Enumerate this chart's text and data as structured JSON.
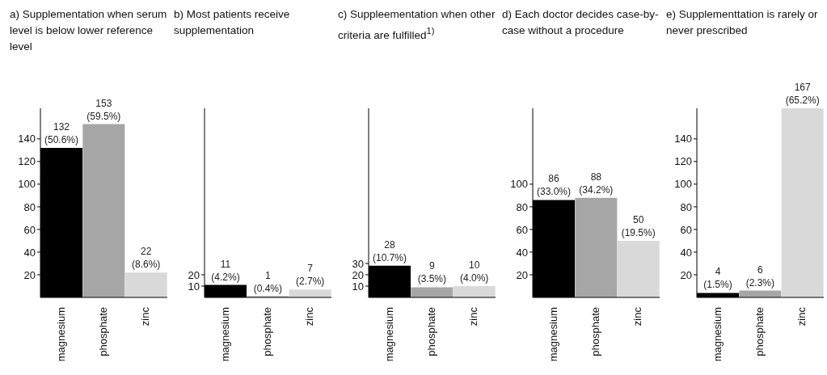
{
  "chart_data": [
    {
      "type": "bar",
      "title": "a) Supplementation when serum level is below lower reference level",
      "categories": [
        "magnesium",
        "phosphate",
        "zinc"
      ],
      "values": [
        132,
        153,
        22
      ],
      "colors": [
        "#000000",
        "#a6a6a6",
        "#d9d9d9"
      ],
      "value_labels": [
        "132 (50.6%)",
        "153 (59.5%)",
        "22 (8.6%)"
      ],
      "ylim": [
        0,
        167
      ],
      "yticks": [
        20,
        40,
        60,
        80,
        100,
        120,
        140
      ],
      "grid": false,
      "legend": false
    },
    {
      "type": "bar",
      "title": "b) Most patients receive supplementation",
      "categories": [
        "magnesium",
        "phosphate",
        "zinc"
      ],
      "values": [
        11,
        1,
        7
      ],
      "colors": [
        "#000000",
        "#a6a6a6",
        "#d9d9d9"
      ],
      "value_labels": [
        "11 (4.2%)",
        "1 (0.4%)",
        "7 (2.7%)"
      ],
      "ylim": [
        0,
        167
      ],
      "yticks": [
        10,
        20
      ],
      "grid": false,
      "legend": false
    },
    {
      "type": "bar",
      "title": "c) Suppleementation when other criteria are fulfilled$^{1)}$",
      "categories": [
        "magnesium",
        "phosphate",
        "zinc"
      ],
      "values": [
        28,
        9,
        10
      ],
      "colors": [
        "#000000",
        "#a6a6a6",
        "#d9d9d9"
      ],
      "value_labels": [
        "28 (10.7%)",
        "9 (3.5%)",
        "10 (4.0%)"
      ],
      "ylim": [
        0,
        167
      ],
      "yticks": [
        10,
        20,
        30
      ],
      "grid": false,
      "legend": false
    },
    {
      "type": "bar",
      "title": "d) Each doctor decides case-by-case without a procedure",
      "categories": [
        "magnesium",
        "phosphate",
        "zinc"
      ],
      "values": [
        86,
        88,
        50
      ],
      "colors": [
        "#000000",
        "#a6a6a6",
        "#d9d9d9"
      ],
      "value_labels": [
        "86 (33.0%)",
        "88 (34.2%)",
        "50 (19.5%)"
      ],
      "ylim": [
        0,
        167
      ],
      "yticks": [
        20,
        40,
        60,
        80,
        100
      ],
      "grid": false,
      "legend": false
    },
    {
      "type": "bar",
      "title": "e) Supplementtation is rarely or never prescribed",
      "categories": [
        "magnesium",
        "phosphate",
        "zinc"
      ],
      "values": [
        4,
        6,
        167
      ],
      "colors": [
        "#000000",
        "#a6a6a6",
        "#d9d9d9"
      ],
      "value_labels": [
        "4 (1.5%)",
        "6 (2.3%)",
        "167 (65.2%)"
      ],
      "ylim": [
        0,
        167
      ],
      "yticks": [
        20,
        40,
        60,
        80,
        100,
        120,
        140
      ],
      "grid": false,
      "legend": false
    }
  ]
}
